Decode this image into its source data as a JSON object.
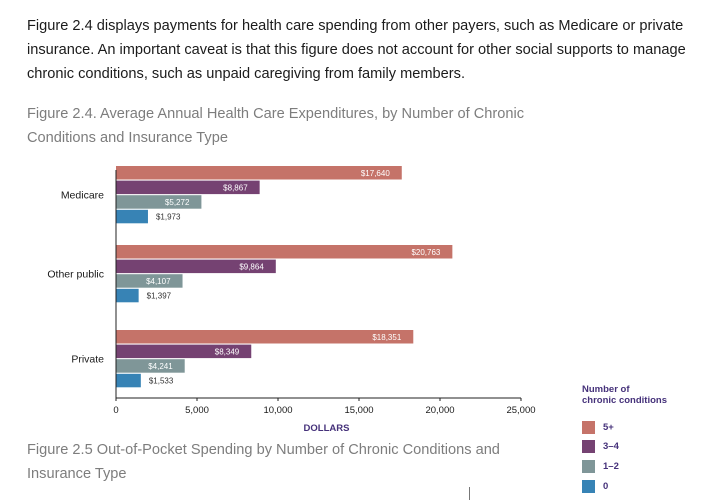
{
  "intro_text": "Figure 2.4 displays payments for health care spending from other payers, such as Medicare or private insurance. An important caveat is that this figure does not account for other social supports to manage chronic conditions, such as unpaid caregiving from family members.",
  "figure_24_title": "Figure 2.4. Average Annual Health Care Expenditures, by Number of Chronic Conditions and Insurance Type",
  "figure_25_title": "Figure 2.5 Out-of-Pocket Spending by Number of Chronic Conditions and Insurance Type",
  "colors": {
    "c5plus": "#c57369",
    "c3to4": "#754272",
    "c1to2": "#7f9698",
    "c0": "#3783b5",
    "axis": "#222222",
    "xlabel": "#45317a"
  },
  "legend": {
    "title": "Number of chronic conditions",
    "title_line1": "Number of",
    "title_line2": "chronic conditions",
    "items": [
      {
        "label": "5+",
        "color": "#c57369"
      },
      {
        "label": "3–4",
        "color": "#754272"
      },
      {
        "label": "1–2",
        "color": "#7f9698"
      },
      {
        "label": "0",
        "color": "#3783b5"
      }
    ]
  },
  "chart_data": {
    "type": "bar",
    "orientation": "horizontal",
    "title": "Figure 2.4. Average Annual Health Care Expenditures, by Number of Chronic Conditions and Insurance Type",
    "categories": [
      "Medicare",
      "Other public",
      "Private"
    ],
    "series": [
      {
        "name": "5+",
        "values": [
          17640,
          20763,
          18351
        ],
        "labels": [
          "$17,640",
          "$20,763",
          "$18,351"
        ]
      },
      {
        "name": "3–4",
        "values": [
          8867,
          9864,
          8349
        ],
        "labels": [
          "$8,867",
          "$9,864",
          "$8,349"
        ]
      },
      {
        "name": "1–2",
        "values": [
          5272,
          4107,
          4241
        ],
        "labels": [
          "$5,272",
          "$4,107",
          "$4,241"
        ]
      },
      {
        "name": "0",
        "values": [
          1973,
          1397,
          1533
        ],
        "labels": [
          "$1,973",
          "$1,397",
          "$1,533"
        ]
      }
    ],
    "xlabel": "DOLLARS",
    "ylabel": "",
    "xlim": [
      0,
      25000
    ],
    "xticks": [
      0,
      5000,
      10000,
      15000,
      20000,
      25000
    ],
    "xtick_labels": [
      "0",
      "5,000",
      "10,000",
      "15,000",
      "20,000",
      "25,000"
    ],
    "grid": false,
    "legend_position": "bottom-right"
  }
}
